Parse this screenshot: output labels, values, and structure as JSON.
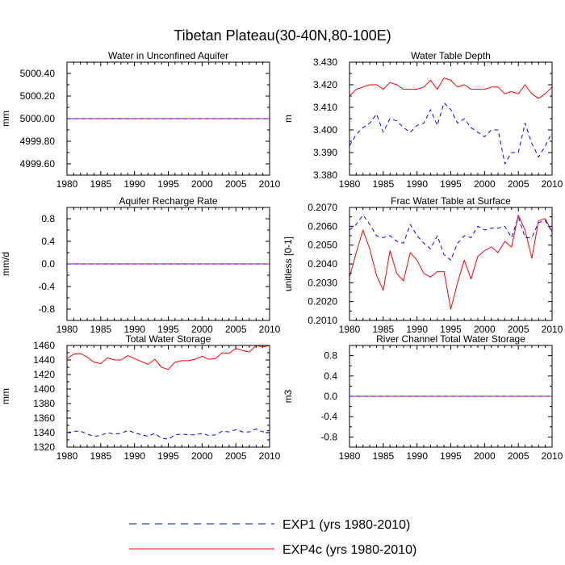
{
  "title": "Tibetan Plateau(30-40N,80-100E)",
  "legend": {
    "items": [
      {
        "label": "EXP1 (yrs 1980-2010)",
        "color": "#0000ff",
        "style": "dashed"
      },
      {
        "label": "EXP4c (yrs 1980-2010)",
        "color": "#ff0000",
        "style": "solid"
      }
    ]
  },
  "chart_data": [
    {
      "type": "line",
      "title": "Water in Unconfined Aquifer",
      "xlabel": "",
      "ylabel": "mm",
      "xlim": [
        1980,
        2010
      ],
      "ylim": [
        4999.5,
        5000.5
      ],
      "xticks": [
        1980,
        1985,
        1990,
        1995,
        2000,
        2005,
        2010
      ],
      "yticks": [
        4999.6,
        4999.8,
        5000.0,
        5000.2,
        5000.4
      ],
      "ytick_labels": [
        "4999.60",
        "4999.80",
        "5000.00",
        "5000.20",
        "5000.40"
      ],
      "series": [
        {
          "name": "EXP4c",
          "values": [
            5000,
            5000,
            5000,
            5000,
            5000,
            5000,
            5000,
            5000,
            5000,
            5000,
            5000,
            5000,
            5000,
            5000,
            5000,
            5000,
            5000,
            5000,
            5000,
            5000,
            5000,
            5000,
            5000,
            5000,
            5000,
            5000,
            5000,
            5000,
            5000,
            5000,
            5000
          ]
        },
        {
          "name": "EXP1",
          "values": [
            5000,
            5000,
            5000,
            5000,
            5000,
            5000,
            5000,
            5000,
            5000,
            5000,
            5000,
            5000,
            5000,
            5000,
            5000,
            5000,
            5000,
            5000,
            5000,
            5000,
            5000,
            5000,
            5000,
            5000,
            5000,
            5000,
            5000,
            5000,
            5000,
            5000,
            5000
          ]
        }
      ]
    },
    {
      "type": "line",
      "title": "Water Table Depth",
      "xlabel": "",
      "ylabel": "m",
      "xlim": [
        1980,
        2010
      ],
      "ylim": [
        3.38,
        3.43
      ],
      "xticks": [
        1980,
        1985,
        1990,
        1995,
        2000,
        2005,
        2010
      ],
      "yticks": [
        3.38,
        3.39,
        3.4,
        3.41,
        3.42,
        3.43
      ],
      "ytick_labels": [
        "3.380",
        "3.390",
        "3.400",
        "3.410",
        "3.420",
        "3.430"
      ],
      "series": [
        {
          "name": "EXP4c",
          "values": [
            3.415,
            3.418,
            3.419,
            3.42,
            3.42,
            3.418,
            3.421,
            3.42,
            3.418,
            3.418,
            3.418,
            3.419,
            3.422,
            3.418,
            3.423,
            3.422,
            3.419,
            3.42,
            3.418,
            3.418,
            3.418,
            3.419,
            3.419,
            3.416,
            3.417,
            3.416,
            3.42,
            3.416,
            3.414,
            3.416,
            3.419
          ]
        },
        {
          "name": "EXP1",
          "values": [
            3.393,
            3.398,
            3.401,
            3.403,
            3.407,
            3.399,
            3.405,
            3.404,
            3.401,
            3.399,
            3.402,
            3.403,
            3.409,
            3.402,
            3.412,
            3.409,
            3.403,
            3.405,
            3.401,
            3.399,
            3.397,
            3.4,
            3.4,
            3.385,
            3.39,
            3.39,
            3.403,
            3.394,
            3.388,
            3.393,
            3.399
          ]
        }
      ]
    },
    {
      "type": "line",
      "title": "Aquifer Recharge Rate",
      "xlabel": "",
      "ylabel": "mm/d",
      "xlim": [
        1980,
        2010
      ],
      "ylim": [
        -1.0,
        1.0
      ],
      "xticks": [
        1980,
        1985,
        1990,
        1995,
        2000,
        2005,
        2010
      ],
      "yticks": [
        -0.8,
        -0.4,
        0.0,
        0.4,
        0.8
      ],
      "ytick_labels": [
        "-0.8",
        "-0.4",
        "0.0",
        "0.4",
        "0.8"
      ],
      "series": [
        {
          "name": "EXP4c",
          "values": [
            0,
            0,
            0,
            0,
            0,
            0,
            0,
            0,
            0,
            0,
            0,
            0,
            0,
            0,
            0,
            0,
            0,
            0,
            0,
            0,
            0,
            0,
            0,
            0,
            0,
            0,
            0,
            0,
            0,
            0,
            0
          ]
        },
        {
          "name": "EXP1",
          "values": [
            0,
            0,
            0,
            0,
            0,
            0,
            0,
            0,
            0,
            0,
            0,
            0,
            0,
            0,
            0,
            0,
            0,
            0,
            0,
            0,
            0,
            0,
            0,
            0,
            0,
            0,
            0,
            0,
            0,
            0,
            0
          ]
        }
      ]
    },
    {
      "type": "line",
      "title": "Frac Water Table at Surface",
      "xlabel": "",
      "ylabel": "unitless [0-1]",
      "xlim": [
        1980,
        2010
      ],
      "ylim": [
        0.201,
        0.207
      ],
      "xticks": [
        1980,
        1985,
        1990,
        1995,
        2000,
        2005,
        2010
      ],
      "yticks": [
        0.201,
        0.202,
        0.203,
        0.204,
        0.205,
        0.206,
        0.207
      ],
      "ytick_labels": [
        "0.2010",
        "0.2020",
        "0.2030",
        "0.2040",
        "0.2050",
        "0.2060",
        "0.2070"
      ],
      "series": [
        {
          "name": "EXP4c",
          "values": [
            0.2033,
            0.2046,
            0.2058,
            0.2048,
            0.2034,
            0.2026,
            0.2047,
            0.2035,
            0.2031,
            0.2046,
            0.2042,
            0.2035,
            0.2033,
            0.2036,
            0.2036,
            0.2016,
            0.203,
            0.2042,
            0.2032,
            0.2044,
            0.2047,
            0.2049,
            0.2046,
            0.2052,
            0.2049,
            0.2066,
            0.2058,
            0.2043,
            0.2063,
            0.2064,
            0.2057
          ]
        },
        {
          "name": "EXP1",
          "values": [
            0.2058,
            0.2061,
            0.2066,
            0.2061,
            0.2055,
            0.2054,
            0.2055,
            0.2052,
            0.2051,
            0.2061,
            0.2055,
            0.2051,
            0.2048,
            0.2055,
            0.2045,
            0.2042,
            0.2051,
            0.2055,
            0.2054,
            0.206,
            0.2058,
            0.2059,
            0.2059,
            0.206,
            0.2054,
            0.2065,
            0.2054,
            0.2054,
            0.2062,
            0.2063,
            0.2057
          ]
        }
      ]
    },
    {
      "type": "line",
      "title": "Total Water Storage",
      "xlabel": "",
      "ylabel": "mm",
      "xlim": [
        1980,
        2010
      ],
      "ylim": [
        1320,
        1460
      ],
      "xticks": [
        1980,
        1985,
        1990,
        1995,
        2000,
        2005,
        2010
      ],
      "yticks": [
        1320,
        1340,
        1360,
        1380,
        1400,
        1420,
        1440,
        1460
      ],
      "ytick_labels": [
        "1320",
        "1340",
        "1360",
        "1380",
        "1400",
        "1420",
        "1440",
        "1460"
      ],
      "series": [
        {
          "name": "EXP4c",
          "values": [
            1442,
            1448,
            1449,
            1444,
            1437,
            1435,
            1443,
            1440,
            1440,
            1446,
            1442,
            1438,
            1434,
            1441,
            1430,
            1427,
            1437,
            1439,
            1439,
            1441,
            1445,
            1441,
            1442,
            1450,
            1449,
            1456,
            1453,
            1451,
            1460,
            1458,
            1460
          ]
        },
        {
          "name": "EXP1",
          "values": [
            1340,
            1342,
            1342,
            1338,
            1335,
            1336,
            1340,
            1338,
            1339,
            1343,
            1340,
            1337,
            1335,
            1339,
            1332,
            1331,
            1337,
            1338,
            1337,
            1337,
            1339,
            1336,
            1337,
            1342,
            1341,
            1344,
            1341,
            1341,
            1345,
            1341,
            1343
          ]
        }
      ]
    },
    {
      "type": "line",
      "title": "River Channel Total Water Storage",
      "xlabel": "",
      "ylabel": "m3",
      "xlim": [
        1980,
        2010
      ],
      "ylim": [
        -1.0,
        1.0
      ],
      "xticks": [
        1980,
        1985,
        1990,
        1995,
        2000,
        2005,
        2010
      ],
      "yticks": [
        -0.8,
        -0.4,
        0.0,
        0.4,
        0.8
      ],
      "ytick_labels": [
        "-0.8",
        "-0.4",
        "0.0",
        "0.4",
        "0.8"
      ],
      "series": [
        {
          "name": "EXP4c",
          "values": [
            0,
            0,
            0,
            0,
            0,
            0,
            0,
            0,
            0,
            0,
            0,
            0,
            0,
            0,
            0,
            0,
            0,
            0,
            0,
            0,
            0,
            0,
            0,
            0,
            0,
            0,
            0,
            0,
            0,
            0,
            0
          ]
        },
        {
          "name": "EXP1",
          "values": [
            0,
            0,
            0,
            0,
            0,
            0,
            0,
            0,
            0,
            0,
            0,
            0,
            0,
            0,
            0,
            0,
            0,
            0,
            0,
            0,
            0,
            0,
            0,
            0,
            0,
            0,
            0,
            0,
            0,
            0,
            0
          ]
        }
      ]
    }
  ]
}
